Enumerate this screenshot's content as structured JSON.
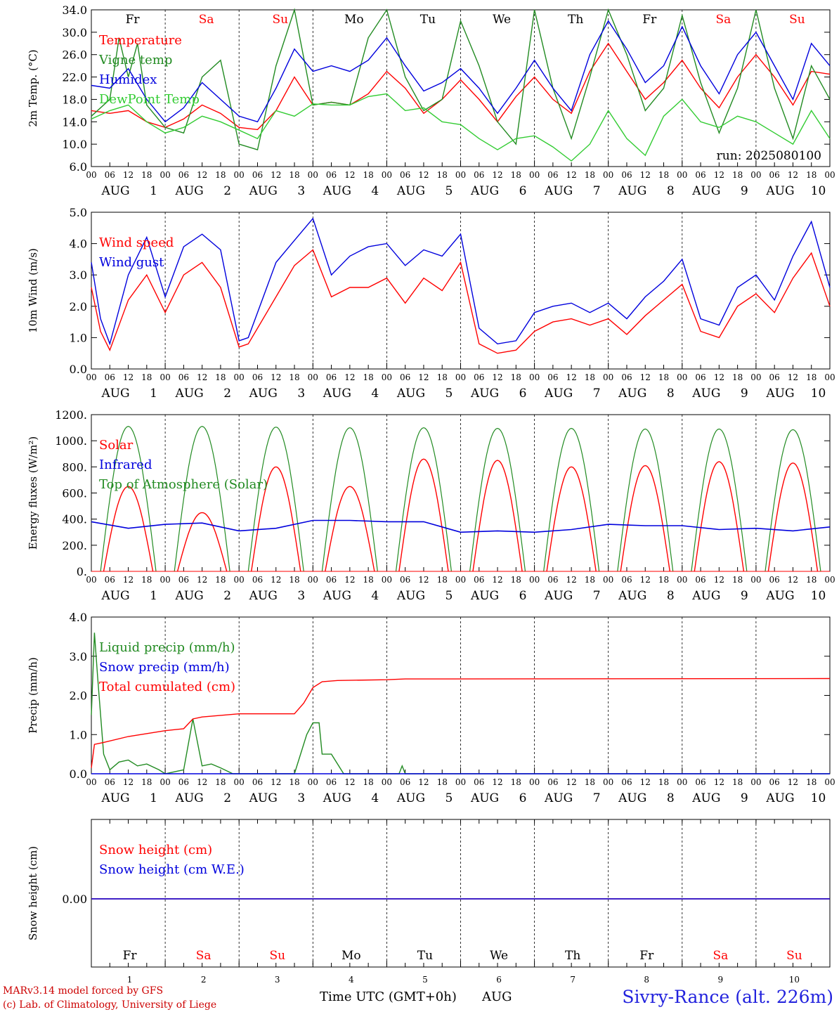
{
  "chart_data": [
    {
      "type": "line",
      "id": "temperature",
      "ylabel": "2m Temp. (°C)",
      "ylim": [
        6.0,
        34.0
      ],
      "yticks": [
        "6.0",
        "10.0",
        "14.0",
        "18.0",
        "22.0",
        "26.0",
        "30.0",
        "34.0"
      ],
      "ytick_values": [
        6,
        10,
        14,
        18,
        22,
        26,
        30,
        34
      ],
      "annotation": "run: 2025080100",
      "days": [
        "Fr",
        "Sa",
        "Su",
        "Mo",
        "Tu",
        "We",
        "Th",
        "Fr",
        "Sa",
        "Su"
      ],
      "series": [
        {
          "name": "Temperature",
          "color": "#ff0000",
          "x": [
            0,
            6,
            12,
            18,
            24,
            30,
            36,
            42,
            48,
            54,
            60,
            66,
            72,
            78,
            84,
            90,
            96,
            102,
            108,
            114,
            120,
            126,
            132,
            138,
            144,
            150,
            156,
            162,
            168,
            174,
            180,
            186,
            192,
            198,
            204,
            210,
            216,
            222,
            228,
            234,
            240
          ],
          "values": [
            16,
            15.5,
            16,
            14,
            13,
            14.5,
            17,
            15.5,
            13,
            12.6,
            16,
            22,
            17,
            17.5,
            17,
            19,
            23,
            20,
            15.5,
            18,
            21.5,
            18,
            14,
            18.5,
            22,
            18,
            15.5,
            23,
            28,
            23,
            18,
            21,
            25,
            20,
            16.5,
            22,
            26,
            22,
            17,
            23,
            22.5
          ]
        },
        {
          "name": "Vigne temp",
          "color": "#228b22",
          "x": [
            0,
            6,
            9,
            12,
            15,
            18,
            24,
            30,
            36,
            42,
            48,
            54,
            60,
            66,
            72,
            78,
            84,
            90,
            96,
            102,
            108,
            114,
            120,
            126,
            132,
            138,
            144,
            150,
            156,
            162,
            168,
            174,
            180,
            186,
            192,
            198,
            204,
            210,
            216,
            222,
            228,
            234,
            240
          ],
          "values": [
            15,
            18,
            29,
            22,
            28,
            17,
            13,
            12,
            22,
            25,
            10,
            9,
            24,
            34,
            17,
            17.5,
            17,
            29,
            34,
            22,
            16,
            18,
            32,
            24,
            14,
            10,
            34,
            20,
            11,
            22,
            34,
            26,
            16,
            20,
            33,
            21,
            12,
            20,
            34,
            20,
            11,
            24,
            18
          ]
        },
        {
          "name": "Humidex",
          "color": "#0000dd",
          "x": [
            0,
            6,
            12,
            18,
            24,
            30,
            36,
            42,
            48,
            54,
            60,
            66,
            72,
            78,
            84,
            90,
            96,
            102,
            108,
            114,
            120,
            126,
            132,
            138,
            144,
            150,
            156,
            162,
            168,
            174,
            180,
            186,
            192,
            198,
            204,
            210,
            216,
            222,
            228,
            234,
            240
          ],
          "values": [
            20.5,
            20,
            23.5,
            18,
            14,
            16.5,
            21,
            18,
            15,
            14,
            20,
            27,
            23,
            24,
            23,
            25,
            29,
            24,
            19.5,
            21,
            23.5,
            20,
            15.5,
            20,
            25,
            20,
            16,
            26,
            32,
            27,
            21,
            24,
            31,
            24,
            19,
            26,
            30,
            24,
            18,
            28,
            24
          ]
        },
        {
          "name": "DewPoint Temp",
          "color": "#33cc33",
          "x": [
            0,
            6,
            12,
            18,
            24,
            30,
            36,
            42,
            48,
            54,
            60,
            66,
            72,
            78,
            84,
            90,
            96,
            102,
            108,
            114,
            120,
            126,
            132,
            138,
            144,
            150,
            156,
            162,
            168,
            174,
            180,
            186,
            192,
            198,
            204,
            210,
            216,
            222,
            228,
            234,
            240
          ],
          "values": [
            14.5,
            16,
            17,
            14,
            12,
            13,
            15,
            14,
            12.5,
            11,
            16,
            15,
            17.2,
            17,
            17,
            18.5,
            19,
            16,
            16.5,
            14,
            13.5,
            11,
            9,
            11,
            11.5,
            9.5,
            7,
            10,
            16,
            11,
            8,
            15,
            18,
            14,
            13,
            15,
            14,
            12,
            10,
            16,
            11
          ]
        }
      ]
    },
    {
      "type": "line",
      "id": "wind",
      "ylabel": "10m Wind (m/s)",
      "ylim": [
        0.0,
        5.0
      ],
      "yticks": [
        "0.0",
        "1.0",
        "2.0",
        "3.0",
        "4.0",
        "5.0"
      ],
      "ytick_values": [
        0,
        1,
        2,
        3,
        4,
        5
      ],
      "series": [
        {
          "name": "Wind speed",
          "color": "#ff0000",
          "x": [
            0,
            3,
            6,
            12,
            18,
            24,
            30,
            36,
            42,
            48,
            51,
            54,
            60,
            66,
            72,
            78,
            84,
            90,
            96,
            102,
            108,
            114,
            120,
            126,
            132,
            138,
            144,
            150,
            156,
            162,
            168,
            174,
            180,
            186,
            192,
            198,
            204,
            210,
            216,
            222,
            228,
            234,
            240
          ],
          "values": [
            2.6,
            1.2,
            0.6,
            2.2,
            3.0,
            1.8,
            3.0,
            3.4,
            2.6,
            0.7,
            0.8,
            1.3,
            2.3,
            3.3,
            3.8,
            2.3,
            2.6,
            2.6,
            2.9,
            2.1,
            2.9,
            2.5,
            3.4,
            0.8,
            0.5,
            0.6,
            1.2,
            1.5,
            1.6,
            1.4,
            1.6,
            1.1,
            1.7,
            2.2,
            2.7,
            1.2,
            1.0,
            2.0,
            2.4,
            1.8,
            2.9,
            3.7,
            2.0
          ]
        },
        {
          "name": "Wind gust",
          "color": "#0000dd",
          "x": [
            0,
            3,
            6,
            12,
            18,
            24,
            30,
            36,
            42,
            48,
            51,
            54,
            60,
            66,
            72,
            78,
            84,
            90,
            96,
            102,
            108,
            114,
            120,
            126,
            132,
            138,
            144,
            150,
            156,
            162,
            168,
            174,
            180,
            186,
            192,
            198,
            204,
            210,
            216,
            222,
            228,
            234,
            240
          ],
          "values": [
            3.4,
            1.6,
            0.8,
            3.0,
            4.2,
            2.3,
            3.9,
            4.3,
            3.8,
            0.9,
            1.0,
            1.8,
            3.4,
            4.1,
            4.8,
            3.0,
            3.6,
            3.9,
            4.0,
            3.3,
            3.8,
            3.6,
            4.3,
            1.3,
            0.8,
            0.9,
            1.8,
            2.0,
            2.1,
            1.8,
            2.1,
            1.6,
            2.3,
            2.8,
            3.5,
            1.6,
            1.4,
            2.6,
            3.0,
            2.2,
            3.6,
            4.7,
            2.6
          ]
        }
      ]
    },
    {
      "type": "line",
      "id": "energy",
      "ylabel": "Energy fluxes (W/m²)",
      "ylim": [
        0,
        1200
      ],
      "yticks": [
        "0.",
        "200.",
        "400.",
        "600.",
        "800.",
        "1000.",
        "1200."
      ],
      "ytick_values": [
        0,
        200,
        400,
        600,
        800,
        1000,
        1200
      ],
      "diurnal": {
        "toa_peak": [
          1110,
          1110,
          1105,
          1100,
          1100,
          1095,
          1095,
          1090,
          1090,
          1085
        ],
        "solar_peak": [
          650,
          450,
          800,
          650,
          860,
          850,
          800,
          810,
          840,
          830
        ],
        "infrared_x": [
          0,
          12,
          24,
          36,
          48,
          60,
          72,
          84,
          96,
          108,
          120,
          132,
          144,
          156,
          168,
          180,
          192,
          204,
          216,
          228,
          240
        ],
        "infrared_values": [
          380,
          330,
          360,
          370,
          310,
          330,
          390,
          390,
          380,
          380,
          300,
          310,
          300,
          320,
          360,
          350,
          350,
          320,
          330,
          310,
          340
        ]
      },
      "series_names": [
        "Solar",
        "Infrared",
        "Top of Atmosphere (Solar)"
      ],
      "colors": {
        "solar": "#ff0000",
        "infrared": "#0000dd",
        "toa": "#228b22"
      }
    },
    {
      "type": "line",
      "id": "precip",
      "ylabel": "Precip (mm/h)",
      "ylim": [
        0.0,
        4.0
      ],
      "yticks": [
        "0.0",
        "1.0",
        "2.0",
        "3.0",
        "4.0"
      ],
      "ytick_values": [
        0,
        1,
        2,
        3,
        4
      ],
      "series": [
        {
          "name": "Liquid precip (mm/h)",
          "color": "#228b22",
          "x": [
            0,
            1,
            2,
            4,
            6,
            9,
            12,
            15,
            18,
            22,
            24,
            30,
            33,
            36,
            39,
            42,
            46,
            48,
            66,
            70,
            72,
            74,
            75,
            78,
            82,
            84,
            96,
            100,
            101,
            102,
            240
          ],
          "values": [
            1.5,
            3.6,
            2.5,
            0.5,
            0.1,
            0.3,
            0.35,
            0.2,
            0.25,
            0.1,
            0,
            0.1,
            1.4,
            0.2,
            0.25,
            0.15,
            0,
            0,
            0,
            1.0,
            1.3,
            1.3,
            0.5,
            0.5,
            0,
            0,
            0,
            0,
            0.2,
            0,
            0
          ]
        },
        {
          "name": "Snow precip (mm/h)",
          "color": "#0000dd",
          "x": [
            0,
            240
          ],
          "values": [
            0,
            0
          ]
        },
        {
          "name": "Total cumulated (cm)",
          "color": "#ff0000",
          "x": [
            0,
            1,
            4,
            12,
            24,
            30,
            33,
            36,
            48,
            60,
            66,
            69,
            72,
            75,
            80,
            96,
            102,
            240
          ],
          "values": [
            0.15,
            0.75,
            0.8,
            0.95,
            1.1,
            1.15,
            1.4,
            1.45,
            1.53,
            1.53,
            1.53,
            1.8,
            2.2,
            2.35,
            2.38,
            2.4,
            2.42,
            2.43
          ]
        }
      ]
    },
    {
      "type": "line",
      "id": "snow",
      "ylabel": "Snow height (cm)",
      "yticks": [
        "0.00"
      ],
      "ytick_values": [
        0
      ],
      "series": [
        {
          "name": "Snow height (cm)",
          "color": "#ff0000",
          "x": [
            0,
            240
          ],
          "values": [
            0,
            0
          ]
        },
        {
          "name": "Snow height (cm W.E.)",
          "color": "#0000dd",
          "x": [
            0,
            240
          ],
          "values": [
            0,
            0
          ]
        }
      ],
      "day_numbers": [
        "1",
        "2",
        "3",
        "4",
        "5",
        "6",
        "7",
        "8",
        "9",
        "10"
      ]
    }
  ],
  "xaxis": {
    "hours": [
      "00",
      "06",
      "12",
      "18"
    ],
    "end_hour": "00",
    "month": "AUG",
    "day_numbers": [
      "1",
      "2",
      "3",
      "4",
      "5",
      "6",
      "7",
      "8",
      "9",
      "10"
    ],
    "title": "Time UTC (GMT+0h)",
    "month_label": "AUG"
  },
  "colors": {
    "weekday": "#000000",
    "weekend": "#ff0000"
  },
  "weekend_days": [
    "Sa",
    "Su"
  ],
  "footer": {
    "line1": "MARv3.14 model forced by GFS",
    "line2": "(c) Lab. of Climatology, University of Liege",
    "station": "Sivry-Rance (alt. 226m)"
  }
}
